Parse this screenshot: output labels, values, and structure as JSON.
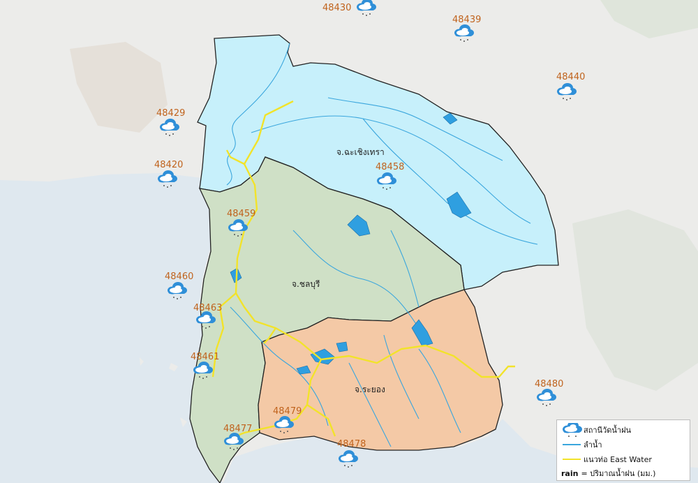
{
  "colors": {
    "sea": "#dfe8ef",
    "land": "#ececea",
    "chachoengsao": "#c7f0fb",
    "chonburi": "#cfe0c6",
    "rayong": "#f4c9a6",
    "river": "#3aa6dd",
    "reservoir": "#2f9fe0",
    "pipeline": "#f2e32a",
    "boundary": "#222222",
    "station_code": "#c0631d"
  },
  "provinces": [
    {
      "name": "จ.ฉะเชิงเทรา"
    },
    {
      "name": "จ.ชลบุรี"
    },
    {
      "name": "จ.ระยอง"
    }
  ],
  "stations": [
    {
      "code": "48430",
      "icon": "rain-cloud-icon"
    },
    {
      "code": "48439",
      "icon": "rain-cloud-icon"
    },
    {
      "code": "48440",
      "icon": "rain-cloud-icon"
    },
    {
      "code": "48429",
      "icon": "rain-cloud-icon"
    },
    {
      "code": "48420",
      "icon": "rain-cloud-icon"
    },
    {
      "code": "48458",
      "icon": "rain-cloud-icon"
    },
    {
      "code": "48459",
      "icon": "rain-cloud-icon"
    },
    {
      "code": "48460",
      "icon": "rain-cloud-icon"
    },
    {
      "code": "48463",
      "icon": "rain-cloud-icon"
    },
    {
      "code": "48461",
      "icon": "rain-cloud-icon"
    },
    {
      "code": "48479",
      "icon": "rain-cloud-icon"
    },
    {
      "code": "48477",
      "icon": "rain-cloud-icon"
    },
    {
      "code": "48478",
      "icon": "rain-cloud-icon"
    },
    {
      "code": "48480",
      "icon": "rain-cloud-icon"
    }
  ],
  "legend": {
    "station_label": "สถานีวัดน้ำฝน",
    "river_label": "ลำน้ำ",
    "pipeline_label": "แนวท่อ East Water",
    "rain_key": "rain",
    "rain_label": "= ปริมาณน้ำฝน (มม.)"
  }
}
